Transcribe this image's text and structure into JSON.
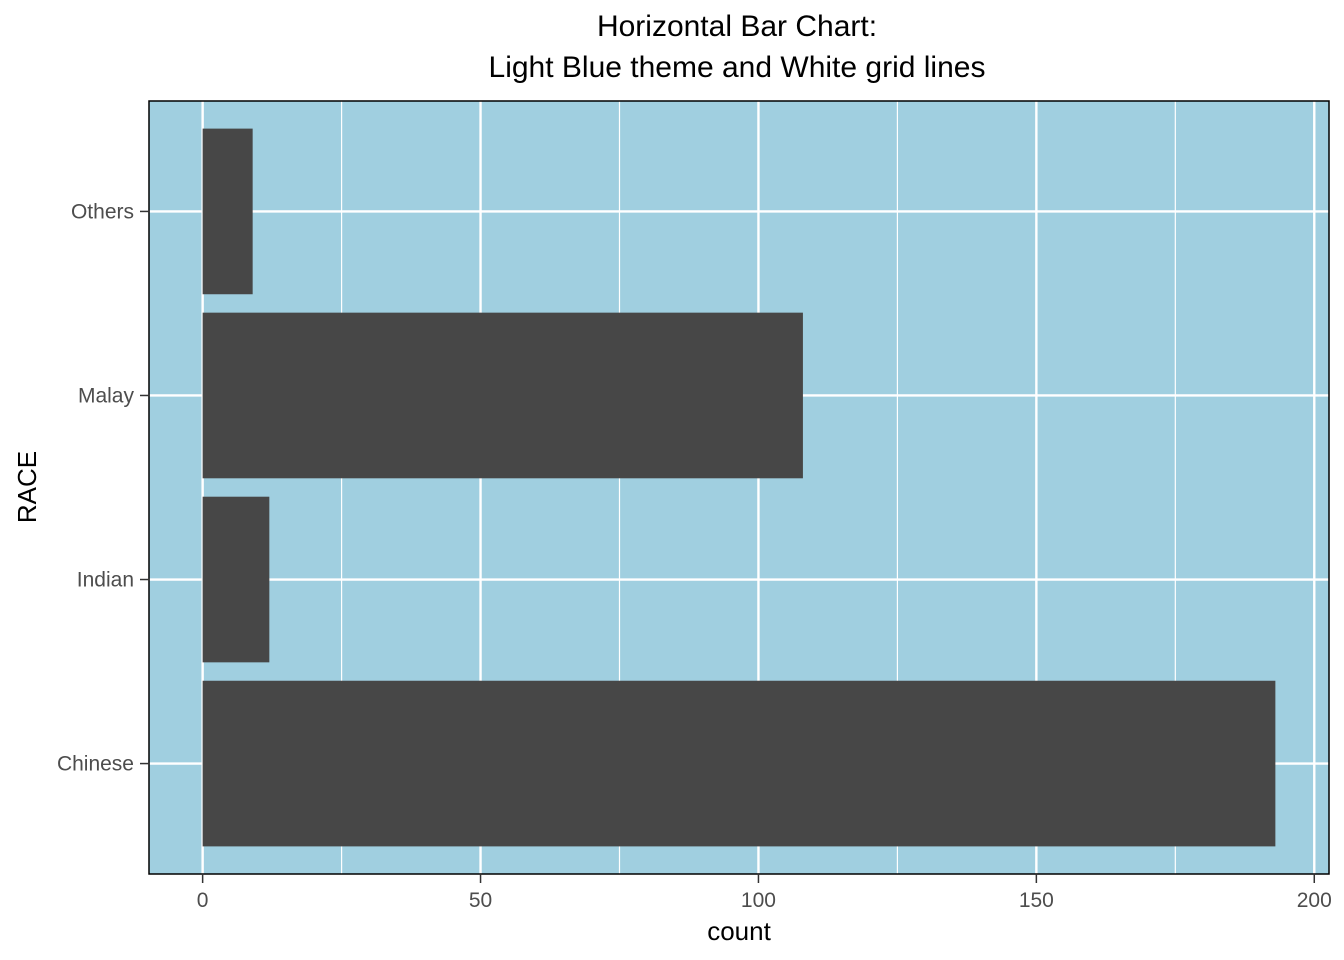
{
  "chart_data": {
    "type": "bar",
    "orientation": "horizontal",
    "title_lines": [
      "Horizontal Bar Chart:",
      "Light Blue theme and White grid lines"
    ],
    "xlabel": "count",
    "ylabel": "RACE",
    "categories": [
      "Chinese",
      "Indian",
      "Malay",
      "Others"
    ],
    "values": [
      193,
      12,
      108,
      9
    ],
    "xlim": [
      -9.65,
      202.65
    ],
    "x_ticks": [
      0,
      50,
      100,
      150,
      200
    ],
    "x_minor_ticks": [
      25,
      75,
      125,
      175
    ],
    "grid": true,
    "colors": {
      "panel_background": "#a0cfe0",
      "grid": "#ffffff",
      "bar": "#474747",
      "panel_border": "#000000",
      "tick_label": "#4d4d4d"
    }
  }
}
